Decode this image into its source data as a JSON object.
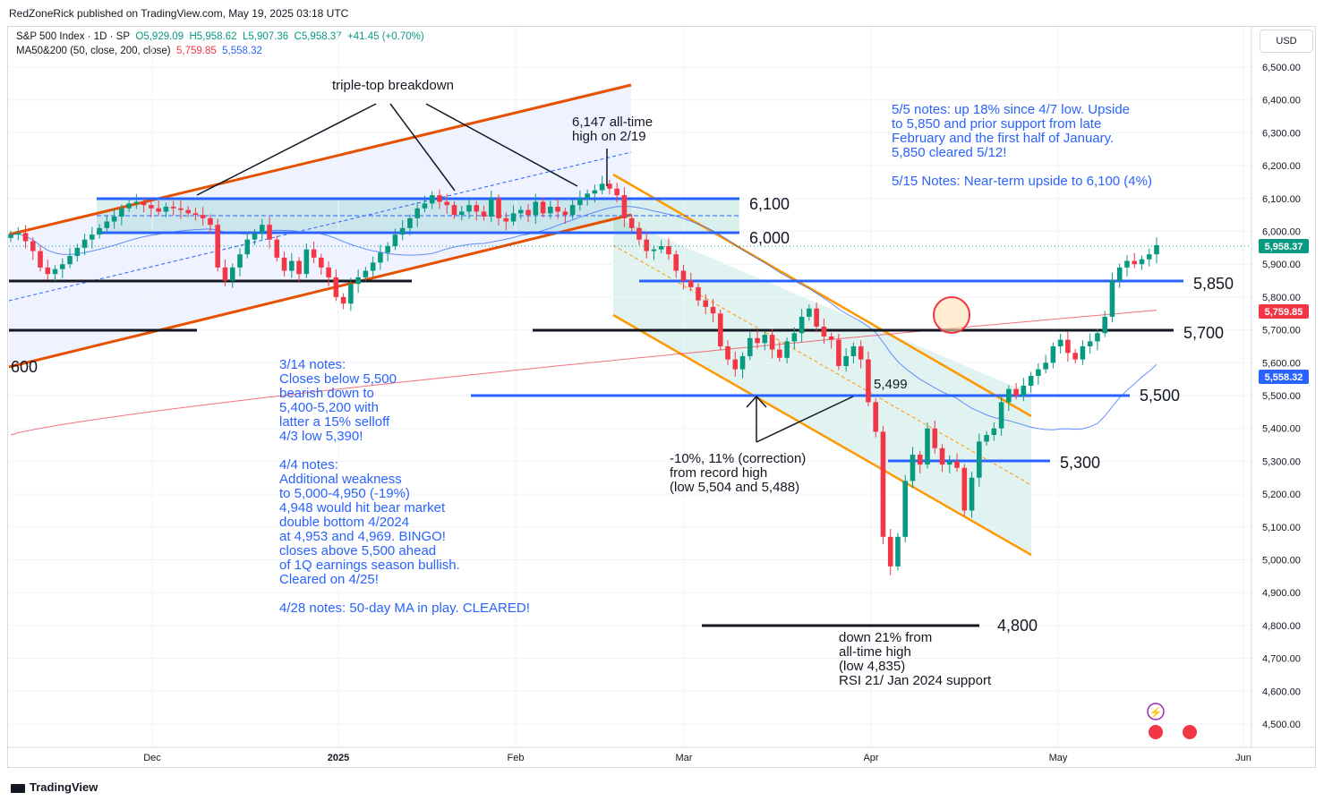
{
  "header": {
    "publisher": "RedZoneRick published on TradingView.com, May 19, 2025 03:18 UTC"
  },
  "legend": {
    "symbol": "S&P 500 Index · 1D · SP",
    "open": "O5,929.09",
    "high": "H5,958.62",
    "low": "L5,907.36",
    "close": "C5,958.37",
    "change": "+41.45 (+0.70%)",
    "ma_label": "MA50&200 (50, close, 200, close)",
    "ma50_value": "5,759.85",
    "ma200_value": "5,558.32"
  },
  "currency": "USD",
  "footer": {
    "logo_text": "TradingView"
  },
  "colors": {
    "up": "#089981",
    "down": "#f23645",
    "ma_blue": "#2962ff",
    "ma_red": "#f23645",
    "channel_orange": "#e65100",
    "channel_light_orange": "#ff9800",
    "annotation_blue": "#2962ff"
  },
  "chart_data": {
    "type": "candlestick",
    "title": "S&P 500 Index · 1D · SP",
    "ylim": [
      4450,
      6560
    ],
    "price_ticks": [
      "6,500.00",
      "6,400.00",
      "6,300.00",
      "6,200.00",
      "6,100.00",
      "6,000.00",
      "5,900.00",
      "5,800.00",
      "5,700.00",
      "5,600.00",
      "5,500.00",
      "5,400.00",
      "5,300.00",
      "5,200.00",
      "5,100.00",
      "5,000.00",
      "4,900.00",
      "4,800.00",
      "4,700.00",
      "4,600.00",
      "4,500.00"
    ],
    "time_ticks": [
      "Dec",
      "2025",
      "Feb",
      "Mar",
      "Apr",
      "May",
      "Jun"
    ],
    "current_price_label": "5,958.37",
    "ma50_label": "5,759.85",
    "ma200_label": "5,558.32",
    "levels": [
      {
        "label": "6,100",
        "value": 6100
      },
      {
        "label": "6,000",
        "value": 6000
      },
      {
        "label": "5,850",
        "value": 5850
      },
      {
        "label": "5,700",
        "value": 5700
      },
      {
        "label": "5,500",
        "value": 5500
      },
      {
        "label": "5,300",
        "value": 5300
      },
      {
        "label": "4,800",
        "value": 4800
      }
    ],
    "left_edge_label": "600",
    "candles_close": [
      5990,
      5995,
      5970,
      5940,
      5890,
      5870,
      5885,
      5900,
      5925,
      5950,
      5975,
      5990,
      6010,
      6030,
      6045,
      6070,
      6085,
      6090,
      6080,
      6070,
      6060,
      6075,
      6070,
      6065,
      6055,
      6050,
      6040,
      6020,
      5890,
      5850,
      5890,
      5930,
      5975,
      5995,
      6020,
      5975,
      5920,
      5880,
      5910,
      5870,
      5945,
      5920,
      5890,
      5860,
      5800,
      5780,
      5840,
      5860,
      5880,
      5905,
      5935,
      5955,
      5990,
      6010,
      6040,
      6070,
      6085,
      6110,
      6090,
      6080,
      6050,
      6060,
      6080,
      6060,
      6045,
      6100,
      6040,
      6030,
      6055,
      6065,
      6050,
      6090,
      6055,
      6075,
      6060,
      6050,
      6080,
      6100,
      6115,
      6125,
      6145,
      6130,
      6110,
      6040,
      6010,
      5975,
      5940,
      5945,
      5955,
      5930,
      5880,
      5850,
      5830,
      5790,
      5770,
      5750,
      5650,
      5610,
      5580,
      5620,
      5675,
      5660,
      5685,
      5640,
      5615,
      5665,
      5690,
      5740,
      5765,
      5710,
      5680,
      5670,
      5590,
      5620,
      5650,
      5610,
      5480,
      5390,
      5070,
      4980,
      5070,
      5240,
      5320,
      5290,
      5400,
      5340,
      5290,
      5300,
      5280,
      5150,
      5250,
      5360,
      5380,
      5400,
      5480,
      5520,
      5500,
      5530,
      5560,
      5580,
      5600,
      5650,
      5670,
      5630,
      5610,
      5650,
      5665,
      5690,
      5740,
      5850,
      5890,
      5910,
      5900,
      5915,
      5930,
      5958
    ],
    "series": [
      {
        "name": "MA50",
        "value": "5,759.85"
      },
      {
        "name": "MA200",
        "value": "5,558.32"
      }
    ],
    "annotations": {
      "triple_top": "triple-top breakdown",
      "ath_1": "6,147 all-time",
      "ath_2": "high on 2/19",
      "notes_55": "5/5 notes: up 18% since 4/7 low. Upside",
      "notes_55b": "to 5,850 and prior support from late",
      "notes_55c": "February and the first half of January.",
      "notes_55d": "5,850 cleared 5/12!",
      "notes_515": "5/15 Notes: Near-term upside to 6,100 (4%)",
      "notes_314": "3/14 notes:",
      "notes_314b": "Closes below 5,500",
      "notes_314c": "bearish down to",
      "notes_314d": "5,400-5,200 with",
      "notes_314e": "latter a 15% selloff",
      "notes_314f": "4/3 low 5,390!",
      "notes_44": "4/4 notes:",
      "notes_44b": "Additional weakness",
      "notes_44c": "to 5,000-4,950 (-19%)",
      "notes_44d": "4,948 would hit bear market",
      "notes_44e": "double bottom 4/2024",
      "notes_44f": "at 4,953 and 4,969. BINGO!",
      "notes_44g": "closes above 5,500 ahead",
      "notes_44h": "of 1Q earnings season bullish.",
      "notes_44i": "Cleared on 4/25!",
      "notes_428": "4/28 notes: 50-day MA in play. CLEARED!",
      "low_5499": "5,499",
      "correction_1": "-10%, 11% (correction)",
      "correction_2": "from record high",
      "correction_3": "(low 5,504 and 5,488)",
      "down_1": "down 21% from",
      "down_2": "all-time high",
      "down_3": "(low 4,835)",
      "down_4": "RSI 21/ Jan 2024 support"
    }
  }
}
